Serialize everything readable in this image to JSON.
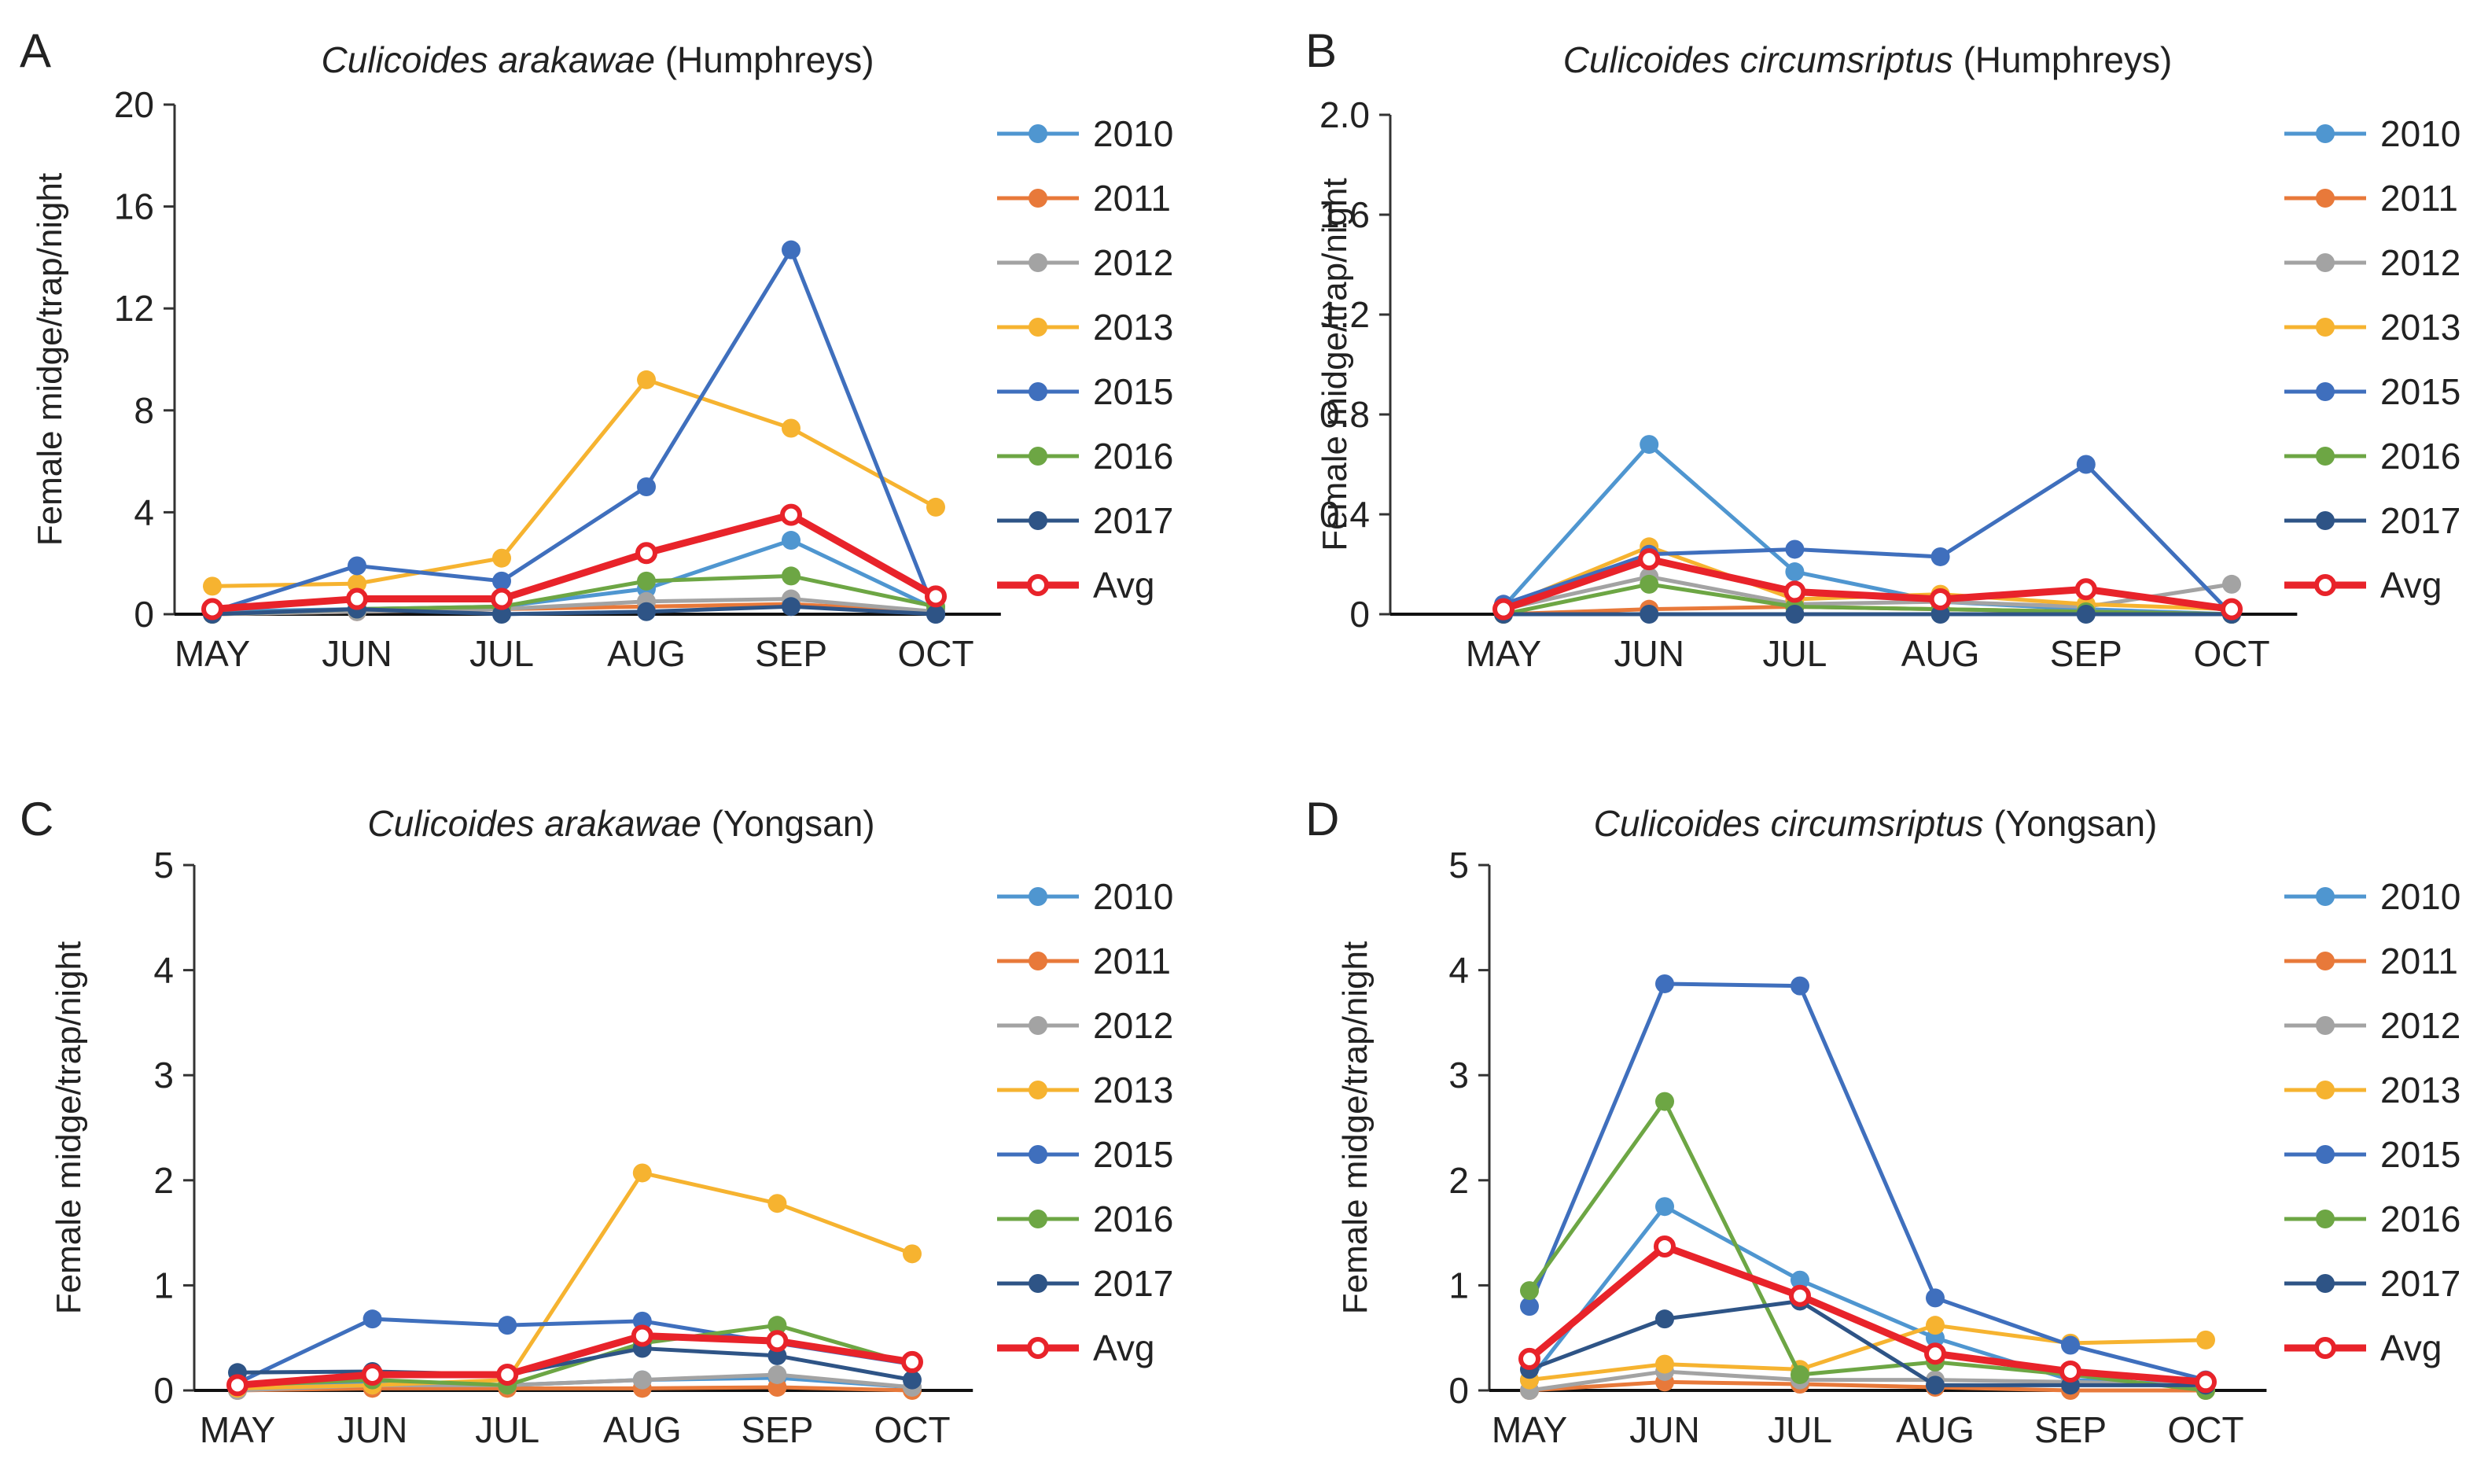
{
  "figure": {
    "months": [
      "MAY",
      "JUN",
      "JUL",
      "AUG",
      "SEP",
      "OCT"
    ],
    "series_colors": {
      "2010": "#4f96d0",
      "2011": "#e8793a",
      "2012": "#a3a3a3",
      "2013": "#f6b330",
      "2015": "#3f6fbd",
      "2016": "#6da644",
      "2017": "#2e5486",
      "Avg": "#e8232a"
    }
  },
  "chart_data": [
    {
      "type": "line",
      "panel": "A",
      "title_species": "Culicoides arakawae",
      "title_site": "(Humphreys)",
      "ylabel": "Female midge/trap/night",
      "categories": [
        "MAY",
        "JUN",
        "JUL",
        "AUG",
        "SEP",
        "OCT"
      ],
      "ylim": [
        0,
        20
      ],
      "yticks": [
        "0",
        "4",
        "8",
        "12",
        "16",
        "20"
      ],
      "series": [
        {
          "name": "2010",
          "values": [
            0.1,
            0.2,
            0.3,
            1.0,
            2.9,
            0.2
          ]
        },
        {
          "name": "2011",
          "values": [
            0.0,
            0.1,
            0.2,
            0.3,
            0.4,
            0.1
          ]
        },
        {
          "name": "2012",
          "values": [
            0.0,
            0.1,
            0.2,
            0.5,
            0.6,
            0.1
          ]
        },
        {
          "name": "2013",
          "values": [
            1.1,
            1.2,
            2.2,
            9.2,
            7.3,
            4.2
          ]
        },
        {
          "name": "2015",
          "values": [
            0.1,
            1.9,
            1.3,
            5.0,
            14.3,
            0.0
          ]
        },
        {
          "name": "2016",
          "values": [
            0.0,
            0.2,
            0.3,
            1.3,
            1.5,
            0.3
          ]
        },
        {
          "name": "2017",
          "values": [
            0.0,
            0.2,
            0.0,
            0.1,
            0.3,
            0.0
          ]
        },
        {
          "name": "Avg",
          "values": [
            0.2,
            0.6,
            0.6,
            2.4,
            3.9,
            0.7
          ]
        }
      ]
    },
    {
      "type": "line",
      "panel": "B",
      "title_species": "Culicoides circumsriptus",
      "title_site": "(Humphreys)",
      "ylabel": "Female midge/trap/night",
      "categories": [
        "MAY",
        "JUN",
        "JUL",
        "AUG",
        "SEP",
        "OCT"
      ],
      "ylim": [
        0,
        2.0
      ],
      "yticks": [
        "0",
        "0.4",
        "0.8",
        "1.2",
        "1.6",
        "2.0"
      ],
      "series": [
        {
          "name": "2010",
          "values": [
            0.03,
            0.68,
            0.17,
            0.05,
            0.02,
            0.0
          ]
        },
        {
          "name": "2011",
          "values": [
            0.0,
            0.02,
            0.03,
            0.02,
            0.01,
            0.0
          ]
        },
        {
          "name": "2012",
          "values": [
            0.02,
            0.15,
            0.04,
            0.05,
            0.03,
            0.12
          ]
        },
        {
          "name": "2013",
          "values": [
            0.03,
            0.27,
            0.06,
            0.08,
            0.04,
            0.02
          ]
        },
        {
          "name": "2015",
          "values": [
            0.04,
            0.24,
            0.26,
            0.23,
            0.6,
            0.0
          ]
        },
        {
          "name": "2016",
          "values": [
            0.0,
            0.12,
            0.03,
            0.02,
            0.01,
            0.0
          ]
        },
        {
          "name": "2017",
          "values": [
            0.0,
            0.0,
            0.0,
            0.0,
            0.0,
            0.0
          ]
        },
        {
          "name": "Avg",
          "values": [
            0.02,
            0.22,
            0.09,
            0.06,
            0.1,
            0.02
          ]
        }
      ]
    },
    {
      "type": "line",
      "panel": "C",
      "title_species": "Culicoides arakawae",
      "title_site": "(Yongsan)",
      "ylabel": "Female midge/trap/night",
      "categories": [
        "MAY",
        "JUN",
        "JUL",
        "AUG",
        "SEP",
        "OCT"
      ],
      "ylim": [
        0,
        5
      ],
      "yticks": [
        "0",
        "1",
        "2",
        "3",
        "4",
        "5"
      ],
      "series": [
        {
          "name": "2010",
          "values": [
            0.05,
            0.08,
            0.05,
            0.1,
            0.12,
            0.03
          ]
        },
        {
          "name": "2011",
          "values": [
            0.0,
            0.02,
            0.02,
            0.02,
            0.03,
            0.0
          ]
        },
        {
          "name": "2012",
          "values": [
            0.0,
            0.05,
            0.05,
            0.1,
            0.15,
            0.03
          ]
        },
        {
          "name": "2013",
          "values": [
            0.02,
            0.05,
            0.1,
            2.07,
            1.78,
            1.3
          ]
        },
        {
          "name": "2015",
          "values": [
            0.07,
            0.68,
            0.62,
            0.66,
            0.45,
            0.25
          ]
        },
        {
          "name": "2016",
          "values": [
            0.05,
            0.1,
            0.05,
            0.45,
            0.62,
            0.25
          ]
        },
        {
          "name": "2017",
          "values": [
            0.17,
            0.18,
            0.15,
            0.4,
            0.33,
            0.1
          ]
        },
        {
          "name": "Avg",
          "values": [
            0.05,
            0.15,
            0.15,
            0.52,
            0.47,
            0.27
          ]
        }
      ]
    },
    {
      "type": "line",
      "panel": "D",
      "title_species": "Culicoides circumsriptus",
      "title_site": "(Yongsan)",
      "ylabel": "Female midge/trap/night",
      "categories": [
        "MAY",
        "JUN",
        "JUL",
        "AUG",
        "SEP",
        "OCT"
      ],
      "ylim": [
        0,
        5
      ],
      "yticks": [
        "0",
        "1",
        "2",
        "3",
        "4",
        "5"
      ],
      "series": [
        {
          "name": "2010",
          "values": [
            0.1,
            1.75,
            1.05,
            0.5,
            0.1,
            0.05
          ]
        },
        {
          "name": "2011",
          "values": [
            0.0,
            0.08,
            0.06,
            0.03,
            0.0,
            0.0
          ]
        },
        {
          "name": "2012",
          "values": [
            0.0,
            0.18,
            0.1,
            0.1,
            0.08,
            0.05
          ]
        },
        {
          "name": "2013",
          "values": [
            0.1,
            0.25,
            0.2,
            0.62,
            0.45,
            0.48
          ]
        },
        {
          "name": "2015",
          "values": [
            0.8,
            3.87,
            3.85,
            0.88,
            0.43,
            0.1
          ]
        },
        {
          "name": "2016",
          "values": [
            0.95,
            2.75,
            0.15,
            0.27,
            0.15,
            0.0
          ]
        },
        {
          "name": "2017",
          "values": [
            0.2,
            0.68,
            0.85,
            0.05,
            0.05,
            0.05
          ]
        },
        {
          "name": "Avg",
          "values": [
            0.3,
            1.37,
            0.9,
            0.35,
            0.18,
            0.08
          ]
        }
      ]
    }
  ]
}
